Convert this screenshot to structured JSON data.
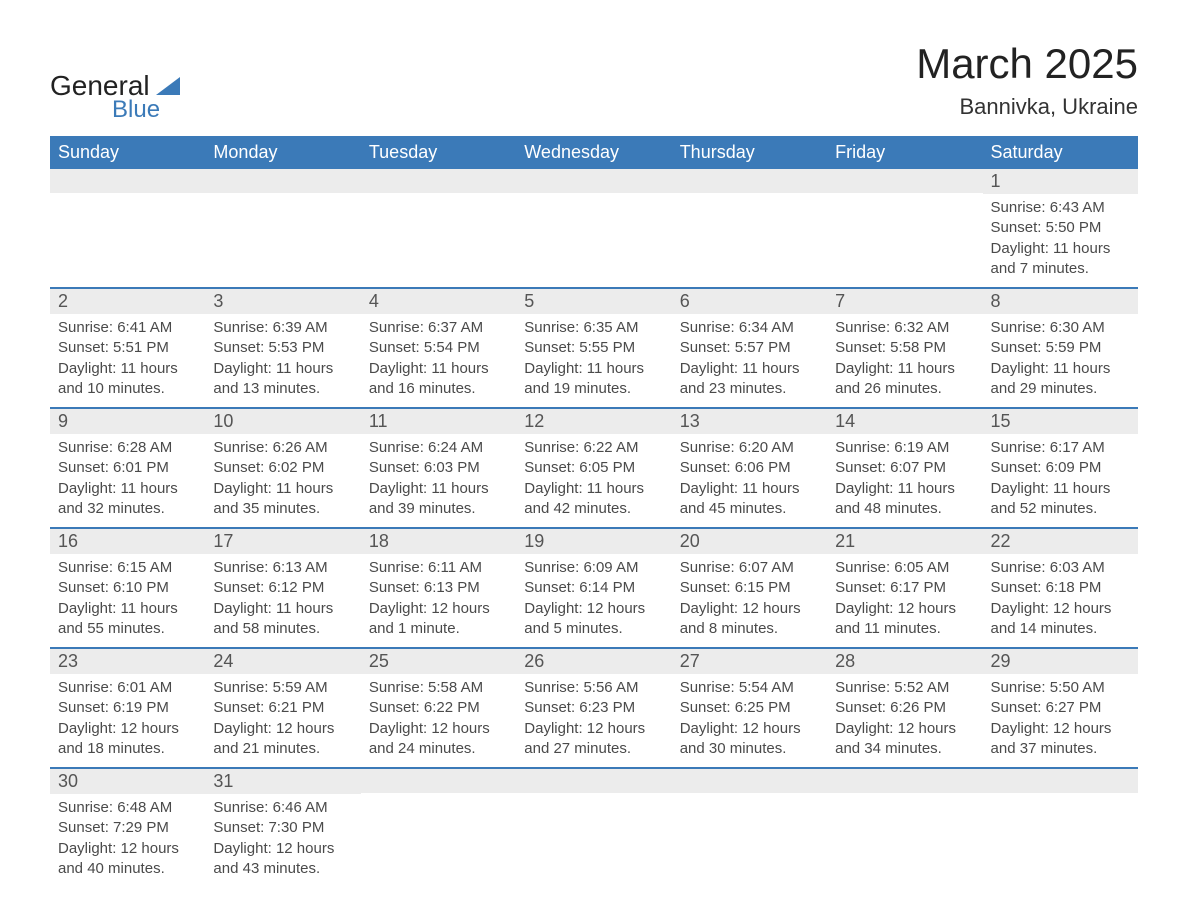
{
  "logo": {
    "text1": "General",
    "text2": "Blue"
  },
  "title": "March 2025",
  "location": "Bannivka, Ukraine",
  "colors": {
    "header_bg": "#3b7ab8",
    "header_text": "#ffffff",
    "row_divider": "#3b7ab8",
    "daynum_bg": "#ececec",
    "body_text": "#4a4a4a",
    "logo_blue": "#3b7ab8",
    "background": "#ffffff"
  },
  "typography": {
    "title_fontsize": 42,
    "location_fontsize": 22,
    "header_fontsize": 18,
    "daynum_fontsize": 18,
    "cell_fontsize": 15
  },
  "days_of_week": [
    "Sunday",
    "Monday",
    "Tuesday",
    "Wednesday",
    "Thursday",
    "Friday",
    "Saturday"
  ],
  "weeks": [
    [
      {
        "num": "",
        "lines": [
          "",
          "",
          "",
          ""
        ]
      },
      {
        "num": "",
        "lines": [
          "",
          "",
          "",
          ""
        ]
      },
      {
        "num": "",
        "lines": [
          "",
          "",
          "",
          ""
        ]
      },
      {
        "num": "",
        "lines": [
          "",
          "",
          "",
          ""
        ]
      },
      {
        "num": "",
        "lines": [
          "",
          "",
          "",
          ""
        ]
      },
      {
        "num": "",
        "lines": [
          "",
          "",
          "",
          ""
        ]
      },
      {
        "num": "1",
        "lines": [
          "Sunrise: 6:43 AM",
          "Sunset: 5:50 PM",
          "Daylight: 11 hours",
          "and 7 minutes."
        ]
      }
    ],
    [
      {
        "num": "2",
        "lines": [
          "Sunrise: 6:41 AM",
          "Sunset: 5:51 PM",
          "Daylight: 11 hours",
          "and 10 minutes."
        ]
      },
      {
        "num": "3",
        "lines": [
          "Sunrise: 6:39 AM",
          "Sunset: 5:53 PM",
          "Daylight: 11 hours",
          "and 13 minutes."
        ]
      },
      {
        "num": "4",
        "lines": [
          "Sunrise: 6:37 AM",
          "Sunset: 5:54 PM",
          "Daylight: 11 hours",
          "and 16 minutes."
        ]
      },
      {
        "num": "5",
        "lines": [
          "Sunrise: 6:35 AM",
          "Sunset: 5:55 PM",
          "Daylight: 11 hours",
          "and 19 minutes."
        ]
      },
      {
        "num": "6",
        "lines": [
          "Sunrise: 6:34 AM",
          "Sunset: 5:57 PM",
          "Daylight: 11 hours",
          "and 23 minutes."
        ]
      },
      {
        "num": "7",
        "lines": [
          "Sunrise: 6:32 AM",
          "Sunset: 5:58 PM",
          "Daylight: 11 hours",
          "and 26 minutes."
        ]
      },
      {
        "num": "8",
        "lines": [
          "Sunrise: 6:30 AM",
          "Sunset: 5:59 PM",
          "Daylight: 11 hours",
          "and 29 minutes."
        ]
      }
    ],
    [
      {
        "num": "9",
        "lines": [
          "Sunrise: 6:28 AM",
          "Sunset: 6:01 PM",
          "Daylight: 11 hours",
          "and 32 minutes."
        ]
      },
      {
        "num": "10",
        "lines": [
          "Sunrise: 6:26 AM",
          "Sunset: 6:02 PM",
          "Daylight: 11 hours",
          "and 35 minutes."
        ]
      },
      {
        "num": "11",
        "lines": [
          "Sunrise: 6:24 AM",
          "Sunset: 6:03 PM",
          "Daylight: 11 hours",
          "and 39 minutes."
        ]
      },
      {
        "num": "12",
        "lines": [
          "Sunrise: 6:22 AM",
          "Sunset: 6:05 PM",
          "Daylight: 11 hours",
          "and 42 minutes."
        ]
      },
      {
        "num": "13",
        "lines": [
          "Sunrise: 6:20 AM",
          "Sunset: 6:06 PM",
          "Daylight: 11 hours",
          "and 45 minutes."
        ]
      },
      {
        "num": "14",
        "lines": [
          "Sunrise: 6:19 AM",
          "Sunset: 6:07 PM",
          "Daylight: 11 hours",
          "and 48 minutes."
        ]
      },
      {
        "num": "15",
        "lines": [
          "Sunrise: 6:17 AM",
          "Sunset: 6:09 PM",
          "Daylight: 11 hours",
          "and 52 minutes."
        ]
      }
    ],
    [
      {
        "num": "16",
        "lines": [
          "Sunrise: 6:15 AM",
          "Sunset: 6:10 PM",
          "Daylight: 11 hours",
          "and 55 minutes."
        ]
      },
      {
        "num": "17",
        "lines": [
          "Sunrise: 6:13 AM",
          "Sunset: 6:12 PM",
          "Daylight: 11 hours",
          "and 58 minutes."
        ]
      },
      {
        "num": "18",
        "lines": [
          "Sunrise: 6:11 AM",
          "Sunset: 6:13 PM",
          "Daylight: 12 hours",
          "and 1 minute."
        ]
      },
      {
        "num": "19",
        "lines": [
          "Sunrise: 6:09 AM",
          "Sunset: 6:14 PM",
          "Daylight: 12 hours",
          "and 5 minutes."
        ]
      },
      {
        "num": "20",
        "lines": [
          "Sunrise: 6:07 AM",
          "Sunset: 6:15 PM",
          "Daylight: 12 hours",
          "and 8 minutes."
        ]
      },
      {
        "num": "21",
        "lines": [
          "Sunrise: 6:05 AM",
          "Sunset: 6:17 PM",
          "Daylight: 12 hours",
          "and 11 minutes."
        ]
      },
      {
        "num": "22",
        "lines": [
          "Sunrise: 6:03 AM",
          "Sunset: 6:18 PM",
          "Daylight: 12 hours",
          "and 14 minutes."
        ]
      }
    ],
    [
      {
        "num": "23",
        "lines": [
          "Sunrise: 6:01 AM",
          "Sunset: 6:19 PM",
          "Daylight: 12 hours",
          "and 18 minutes."
        ]
      },
      {
        "num": "24",
        "lines": [
          "Sunrise: 5:59 AM",
          "Sunset: 6:21 PM",
          "Daylight: 12 hours",
          "and 21 minutes."
        ]
      },
      {
        "num": "25",
        "lines": [
          "Sunrise: 5:58 AM",
          "Sunset: 6:22 PM",
          "Daylight: 12 hours",
          "and 24 minutes."
        ]
      },
      {
        "num": "26",
        "lines": [
          "Sunrise: 5:56 AM",
          "Sunset: 6:23 PM",
          "Daylight: 12 hours",
          "and 27 minutes."
        ]
      },
      {
        "num": "27",
        "lines": [
          "Sunrise: 5:54 AM",
          "Sunset: 6:25 PM",
          "Daylight: 12 hours",
          "and 30 minutes."
        ]
      },
      {
        "num": "28",
        "lines": [
          "Sunrise: 5:52 AM",
          "Sunset: 6:26 PM",
          "Daylight: 12 hours",
          "and 34 minutes."
        ]
      },
      {
        "num": "29",
        "lines": [
          "Sunrise: 5:50 AM",
          "Sunset: 6:27 PM",
          "Daylight: 12 hours",
          "and 37 minutes."
        ]
      }
    ],
    [
      {
        "num": "30",
        "lines": [
          "Sunrise: 6:48 AM",
          "Sunset: 7:29 PM",
          "Daylight: 12 hours",
          "and 40 minutes."
        ]
      },
      {
        "num": "31",
        "lines": [
          "Sunrise: 6:46 AM",
          "Sunset: 7:30 PM",
          "Daylight: 12 hours",
          "and 43 minutes."
        ]
      },
      {
        "num": "",
        "lines": [
          "",
          "",
          "",
          ""
        ]
      },
      {
        "num": "",
        "lines": [
          "",
          "",
          "",
          ""
        ]
      },
      {
        "num": "",
        "lines": [
          "",
          "",
          "",
          ""
        ]
      },
      {
        "num": "",
        "lines": [
          "",
          "",
          "",
          ""
        ]
      },
      {
        "num": "",
        "lines": [
          "",
          "",
          "",
          ""
        ]
      }
    ]
  ]
}
